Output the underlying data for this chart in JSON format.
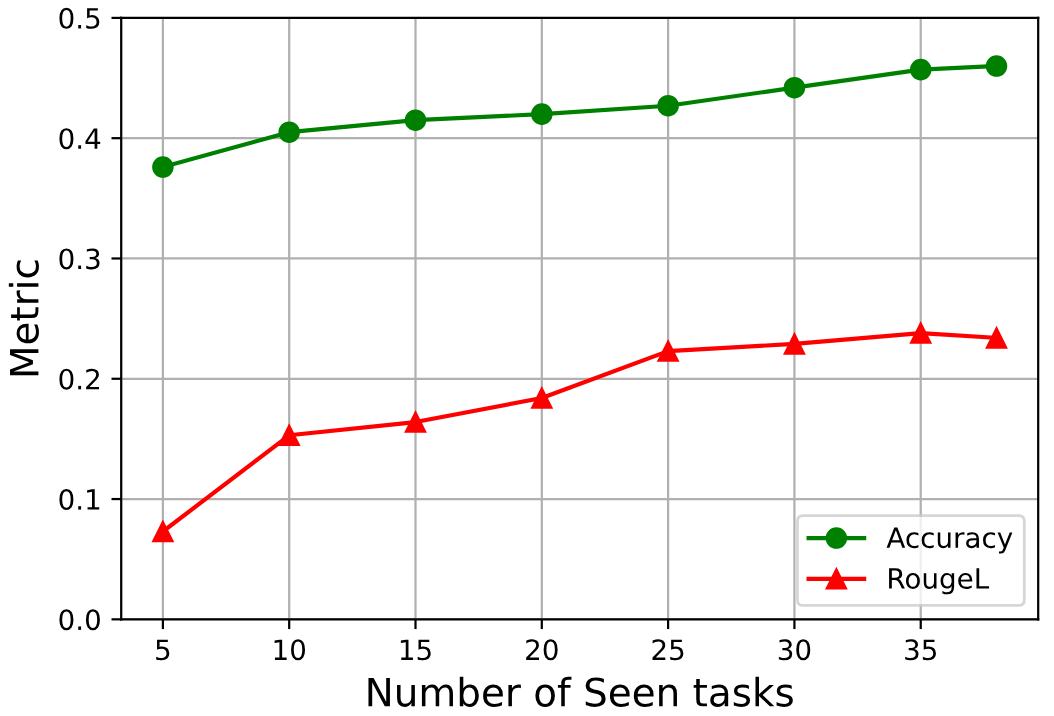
{
  "chart_data": {
    "type": "line",
    "xlabel": "Number of Seen tasks",
    "ylabel": "Metric",
    "x": [
      5,
      10,
      15,
      20,
      25,
      30,
      35,
      38
    ],
    "series": [
      {
        "name": "Accuracy",
        "color": "#008000",
        "marker": "circle",
        "values": [
          0.376,
          0.405,
          0.415,
          0.42,
          0.427,
          0.442,
          0.457,
          0.46
        ]
      },
      {
        "name": "RougeL",
        "color": "#ff0000",
        "marker": "triangle",
        "values": [
          0.073,
          0.153,
          0.164,
          0.184,
          0.223,
          0.229,
          0.238,
          0.234
        ]
      }
    ],
    "xlim": [
      3.35,
      39.65
    ],
    "xticks": [
      5,
      10,
      15,
      20,
      25,
      30,
      35
    ],
    "ylim": [
      0,
      0.5
    ],
    "yticks": [
      {
        "value": 0,
        "label": "0.0"
      },
      0.1,
      0.2,
      0.3,
      0.4,
      0.5
    ],
    "grid": true,
    "legend": "bottom right",
    "line_style": "solid"
  }
}
